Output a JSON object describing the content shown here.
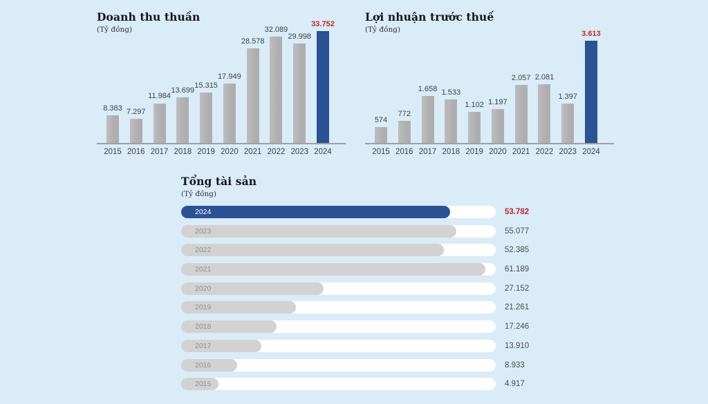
{
  "colors": {
    "background": "#d9ecf7",
    "highlight_blue": "#2a5294",
    "highlight_red": "#c0262c",
    "bar_gray": "#b2b2b4",
    "hbar_gray": "#d2d2d2",
    "track_white": "#ffffff",
    "axis_line": "#9aa0a6",
    "label_dark": "#3e4148",
    "hbar_year_gray": "#8f9093",
    "hbar_value_gray": "#4b4d52"
  },
  "chart_data": [
    {
      "type": "bar",
      "orientation": "vertical",
      "title": "Doanh thu thuần",
      "subtitle": "(Tỷ đồng)",
      "ylabel": "Tỷ đồng",
      "categories": [
        "2015",
        "2016",
        "2017",
        "2018",
        "2019",
        "2020",
        "2021",
        "2022",
        "2023",
        "2024"
      ],
      "values": [
        8383,
        7297,
        11984,
        13699,
        15315,
        17949,
        28578,
        32089,
        29998,
        33752
      ],
      "value_labels": [
        "8.383",
        "7.297",
        "11.984",
        "13.699",
        "15.315",
        "17.949",
        "28.578",
        "32.089",
        "29.998",
        "33.752"
      ],
      "highlight_category": "2024",
      "ylim": [
        0,
        33752
      ],
      "grid": false,
      "legend": false
    },
    {
      "type": "bar",
      "orientation": "vertical",
      "title": "Lợi nhuận trước thuế",
      "subtitle": "(Tỷ đồng)",
      "ylabel": "Tỷ đồng",
      "categories": [
        "2015",
        "2016",
        "2017",
        "2018",
        "2019",
        "2020",
        "2021",
        "2022",
        "2023",
        "2024"
      ],
      "values": [
        574,
        772,
        1658,
        1533,
        1102,
        1197,
        2057,
        2081,
        1397,
        3613
      ],
      "value_labels": [
        "574",
        "772",
        "1.658",
        "1.533",
        "1.102",
        "1.197",
        "2.057",
        "2.081",
        "1.397",
        "3.613"
      ],
      "highlight_category": "2024",
      "ylim": [
        0,
        3613
      ],
      "grid": false,
      "legend": false
    },
    {
      "type": "bar",
      "orientation": "horizontal",
      "title": "Tổng tài sản",
      "subtitle": "(Tỷ đồng)",
      "xlabel": "Tỷ đồng",
      "categories": [
        "2024",
        "2023",
        "2022",
        "2021",
        "2020",
        "2019",
        "2018",
        "2017",
        "2016",
        "2015"
      ],
      "values": [
        53782,
        55077,
        52385,
        61189,
        27152,
        21261,
        17246,
        13910,
        8933,
        4917
      ],
      "value_labels": [
        "53.782",
        "55.077",
        "52.385",
        "61.189",
        "27.152",
        "21.261",
        "17.246",
        "13.910",
        "8.933",
        "4.917"
      ],
      "highlight_category": "2024",
      "xlim": [
        0,
        61189
      ],
      "grid": false,
      "legend": false
    }
  ]
}
